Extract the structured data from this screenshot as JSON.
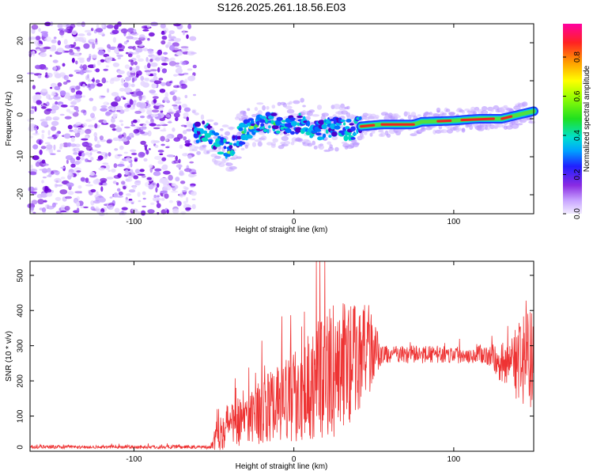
{
  "title": "S126.2025.261.18.56.E03",
  "chart_data": [
    {
      "type": "heatmap",
      "xlabel": "Height of straight line (km)",
      "ylabel": "Frequency (Hz)",
      "xlim": [
        -165,
        150
      ],
      "ylim": [
        -25,
        25
      ],
      "xticks": [
        -100,
        0,
        100
      ],
      "yticks": [
        -20,
        -10,
        0,
        10,
        20
      ],
      "noise_region": [
        -165,
        -62
      ],
      "ridge": [
        {
          "x": -62,
          "y": -4
        },
        {
          "x": -55,
          "y": -3
        },
        {
          "x": -50,
          "y": -6
        },
        {
          "x": -45,
          "y": -7
        },
        {
          "x": -40,
          "y": -9
        },
        {
          "x": -35,
          "y": -5
        },
        {
          "x": -30,
          "y": -3
        },
        {
          "x": -25,
          "y": -2
        },
        {
          "x": -15,
          "y": -1
        },
        {
          "x": -5,
          "y": -2
        },
        {
          "x": 5,
          "y": -1
        },
        {
          "x": 15,
          "y": -3
        },
        {
          "x": 25,
          "y": -2
        },
        {
          "x": 35,
          "y": -3
        },
        {
          "x": 42,
          "y": -2
        },
        {
          "x": 55,
          "y": -1.5
        },
        {
          "x": 75,
          "y": -1.5
        },
        {
          "x": 80,
          "y": -0.8
        },
        {
          "x": 100,
          "y": -0.5
        },
        {
          "x": 115,
          "y": 0
        },
        {
          "x": 130,
          "y": 0
        },
        {
          "x": 140,
          "y": 1
        },
        {
          "x": 150,
          "y": 2
        }
      ],
      "colorbar": {
        "label": "Normalized spectral amplitude",
        "range": [
          0,
          0.97
        ],
        "ticks": [
          0.0,
          0.2,
          0.4,
          0.6,
          0.8
        ]
      }
    },
    {
      "type": "line",
      "xlabel": "Height of straight line (km)",
      "ylabel": "SNR (10 * v/v)",
      "xlim": [
        -165,
        150
      ],
      "ylim": [
        0,
        540
      ],
      "xticks": [
        -100,
        0,
        100
      ],
      "yticks": [
        0,
        100,
        200,
        300,
        400,
        500
      ],
      "series": [
        {
          "name": "SNR",
          "color": "#ee3333",
          "envelope": [
            {
              "x": -165,
              "base": 12,
              "amp": 5
            },
            {
              "x": -52,
              "base": 12,
              "amp": 5
            },
            {
              "x": -48,
              "base": 60,
              "amp": 60
            },
            {
              "x": -30,
              "base": 100,
              "amp": 80
            },
            {
              "x": -10,
              "base": 130,
              "amp": 110
            },
            {
              "x": 10,
              "base": 190,
              "amp": 160
            },
            {
              "x": 30,
              "base": 240,
              "amp": 200
            },
            {
              "x": 48,
              "base": 290,
              "amp": 120
            },
            {
              "x": 55,
              "base": 275,
              "amp": 25
            },
            {
              "x": 120,
              "base": 275,
              "amp": 25
            },
            {
              "x": 130,
              "base": 250,
              "amp": 60
            },
            {
              "x": 150,
              "base": 260,
              "amp": 160
            }
          ]
        }
      ]
    }
  ]
}
